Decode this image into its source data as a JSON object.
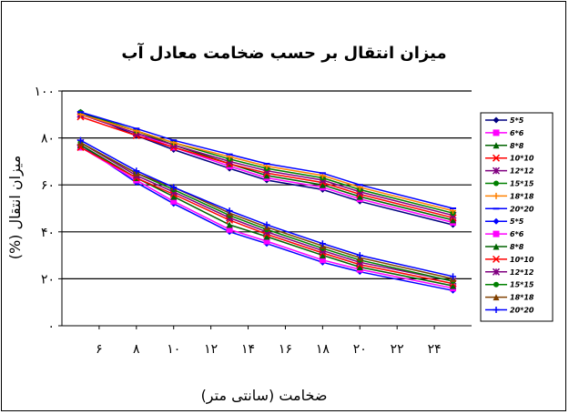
{
  "chart_data": {
    "type": "line",
    "title": "میزان انتقال بر حسب ضخامت معادل آب",
    "xlabel": "ضخامت (سانتی متر)",
    "ylabel": "میزان انتقال (%)",
    "x": [
      5,
      8,
      10,
      13,
      15,
      18,
      20,
      25
    ],
    "xticks": [
      "۶",
      "۸",
      "۱۰",
      "۱۲",
      "۱۴",
      "۱۶",
      "۱۸",
      "۲۰",
      "۲۲",
      "۲۴"
    ],
    "yticks": [
      "۰",
      "۲۰",
      "۴۰",
      "۶۰",
      "۸۰",
      "۱۰۰"
    ],
    "ylim": [
      0,
      100
    ],
    "grid": "horizontal",
    "legend_position": "right",
    "series": [
      {
        "name": "5*5",
        "color": "#000080",
        "marker": "diamond",
        "values": [
          91,
          81,
          75,
          67,
          62,
          58,
          53,
          43
        ]
      },
      {
        "name": "6*6",
        "color": "#ff00ff",
        "marker": "square",
        "values": [
          90,
          82,
          76,
          68,
          63,
          59,
          54,
          44
        ]
      },
      {
        "name": "8*8",
        "color": "#006400",
        "marker": "triangle",
        "values": [
          90,
          83,
          77,
          69,
          64,
          60,
          55,
          45
        ]
      },
      {
        "name": "10*10",
        "color": "#ff0000",
        "marker": "x",
        "values": [
          89,
          81,
          76,
          69,
          65,
          61,
          56,
          46
        ]
      },
      {
        "name": "12*12",
        "color": "#800080",
        "marker": "star",
        "values": [
          90,
          82,
          77,
          70,
          66,
          62,
          57,
          47
        ]
      },
      {
        "name": "15*15",
        "color": "#008000",
        "marker": "circle",
        "values": [
          91,
          83,
          78,
          71,
          67,
          63,
          58,
          48
        ]
      },
      {
        "name": "18*18",
        "color": "#ff8000",
        "marker": "plus",
        "values": [
          90,
          83,
          78,
          72,
          68,
          64,
          59,
          49
        ]
      },
      {
        "name": "20*20",
        "color": "#0000ff",
        "marker": "dash",
        "values": [
          91,
          84,
          79,
          73,
          69,
          65,
          60,
          50
        ]
      },
      {
        "name": "5*5",
        "color": "#0000ff",
        "marker": "diamond",
        "values": [
          77,
          61,
          52,
          40,
          35,
          27,
          23,
          15
        ]
      },
      {
        "name": "6*6",
        "color": "#ff00ff",
        "marker": "square",
        "values": [
          76,
          62,
          53,
          41,
          36,
          28,
          24,
          16
        ]
      },
      {
        "name": "8*8",
        "color": "#006400",
        "marker": "triangle",
        "values": [
          77,
          63,
          55,
          43,
          38,
          30,
          25,
          17
        ]
      },
      {
        "name": "10*10",
        "color": "#ff0000",
        "marker": "x",
        "values": [
          76,
          63,
          56,
          45,
          39,
          31,
          26,
          18
        ]
      },
      {
        "name": "12*12",
        "color": "#800080",
        "marker": "star",
        "values": [
          78,
          64,
          57,
          46,
          40,
          32,
          27,
          19
        ]
      },
      {
        "name": "15*15",
        "color": "#008000",
        "marker": "circle",
        "values": [
          78,
          65,
          58,
          47,
          41,
          33,
          28,
          19
        ]
      },
      {
        "name": "18*18",
        "color": "#804000",
        "marker": "triangle",
        "values": [
          78,
          65,
          59,
          48,
          42,
          34,
          29,
          20
        ]
      },
      {
        "name": "20*20",
        "color": "#0000ff",
        "marker": "plus",
        "values": [
          79,
          66,
          59,
          49,
          43,
          35,
          30,
          21
        ]
      }
    ]
  }
}
